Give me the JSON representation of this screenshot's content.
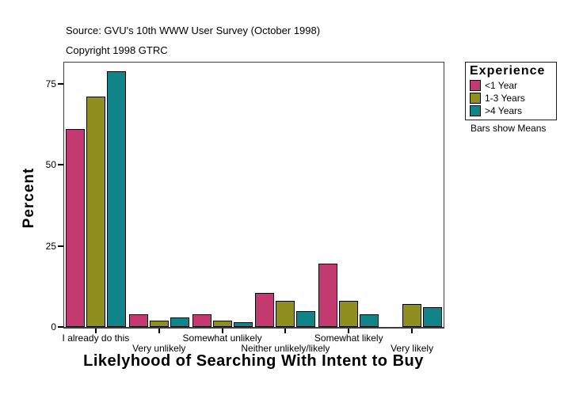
{
  "header": {
    "source": "Source: GVU's 10th WWW User Survey (October 1998)",
    "copyright": "Copyright 1998 GTRC"
  },
  "chart_data": {
    "type": "bar",
    "title": "",
    "xlabel": "Likelyhood of Searching With Intent to Buy",
    "ylabel": "Percent",
    "categories": [
      "I already do this",
      "Very unlikely",
      "Somewhat unlikely",
      "Neither unlikely/likely",
      "Somewhat likely",
      "Very likely"
    ],
    "series": [
      {
        "name": "<1 Year",
        "color": "#c23a6f",
        "values": [
          61,
          4,
          4,
          10.5,
          19.5,
          0
        ]
      },
      {
        "name": "1-3 Years",
        "color": "#8f8f1f",
        "values": [
          71,
          2,
          2,
          8,
          8,
          7
        ]
      },
      {
        "name": ">4 Years",
        "color": "#108488",
        "values": [
          79,
          3,
          1.5,
          5,
          4,
          6
        ]
      }
    ],
    "yticks": [
      0,
      25,
      50,
      75
    ],
    "ylim": [
      0,
      81.6
    ],
    "grid": false,
    "legend_position": "right",
    "legend_title": "Experience",
    "legend_note": "Bars show Means"
  }
}
